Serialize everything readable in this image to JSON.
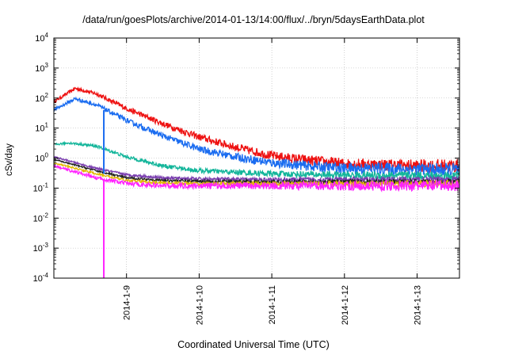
{
  "chart_data": {
    "type": "line",
    "title": "/data/run/goesPlots/archive/2014-01-13/14:00/flux/../bryn/5daysEarthData.plot",
    "xlabel": "Coordinated Universal Time (UTC)",
    "ylabel": "cSv/day",
    "y_scale": "log",
    "ylim": [
      0.0001,
      10000
    ],
    "xlim": [
      "2014-01-08T00:00",
      "2014-01-13T14:00"
    ],
    "x_ticks": [
      "2014-01-09",
      "2014-01-10",
      "2014-01-11",
      "2014-01-12",
      "2014-01-13"
    ],
    "x_tick_labels": [
      "2014-1-9",
      "2014-1-10",
      "2014-1-11",
      "2014-1-12",
      "2014-1-13"
    ],
    "y_ticks": [
      0.0001,
      0.001,
      0.01,
      0.1,
      1,
      10,
      100,
      1000,
      10000
    ],
    "y_tick_labels": [
      {
        "base": "10",
        "exp": "-4"
      },
      {
        "base": "10",
        "exp": "-3"
      },
      {
        "base": "10",
        "exp": "-2"
      },
      {
        "base": "10",
        "exp": "-1"
      },
      {
        "base": "10",
        "exp": "0"
      },
      {
        "base": "10",
        "exp": "1"
      },
      {
        "base": "10",
        "exp": "2"
      },
      {
        "base": "10",
        "exp": "3"
      },
      {
        "base": "10",
        "exp": "4"
      }
    ],
    "grid": true,
    "legend": "none",
    "series": [
      {
        "color": "#ee1111",
        "noise": 0.12,
        "points": [
          [
            "2014-01-08T00:00",
            75
          ],
          [
            "2014-01-08T07:00",
            210
          ],
          [
            "2014-01-08T14:00",
            140
          ],
          [
            "2014-01-09T00:00",
            45
          ],
          [
            "2014-01-09T12:00",
            14
          ],
          [
            "2014-01-10T00:00",
            5
          ],
          [
            "2014-01-10T12:00",
            2.3
          ],
          [
            "2014-01-11T00:00",
            1.2
          ],
          [
            "2014-01-11T12:00",
            0.85
          ],
          [
            "2014-01-12T00:00",
            0.65
          ],
          [
            "2014-01-12T12:00",
            0.6
          ],
          [
            "2014-01-13T00:00",
            0.55
          ],
          [
            "2014-01-13T14:00",
            0.55
          ]
        ]
      },
      {
        "color": "#1a6cf0",
        "noise": 0.12,
        "points": [
          [
            "2014-01-08T00:00",
            40
          ],
          [
            "2014-01-08T07:00",
            95
          ],
          [
            "2014-01-08T14:00",
            60
          ],
          [
            "2014-01-09T00:00",
            18
          ],
          [
            "2014-01-09T12:00",
            5.5
          ],
          [
            "2014-01-10T00:00",
            2
          ],
          [
            "2014-01-10T12:00",
            1.1
          ],
          [
            "2014-01-11T00:00",
            0.7
          ],
          [
            "2014-01-11T12:00",
            0.55
          ],
          [
            "2014-01-12T00:00",
            0.45
          ],
          [
            "2014-01-12T12:00",
            0.45
          ],
          [
            "2014-01-13T00:00",
            0.42
          ],
          [
            "2014-01-13T14:00",
            0.4
          ]
        ]
      },
      {
        "color": "#12b59a",
        "noise": 0.08,
        "points": [
          [
            "2014-01-08T00:00",
            2.8
          ],
          [
            "2014-01-08T05:00",
            3.2
          ],
          [
            "2014-01-08T14:00",
            2.5
          ],
          [
            "2014-01-09T00:00",
            1.1
          ],
          [
            "2014-01-09T12:00",
            0.55
          ],
          [
            "2014-01-10T00:00",
            0.38
          ],
          [
            "2014-01-11T00:00",
            0.3
          ],
          [
            "2014-01-12T00:00",
            0.27
          ],
          [
            "2014-01-13T00:00",
            0.26
          ],
          [
            "2014-01-13T14:00",
            0.25
          ]
        ]
      },
      {
        "color": "#7b3fb0",
        "noise": 0.06,
        "points": [
          [
            "2014-01-08T00:00",
            1.1
          ],
          [
            "2014-01-08T14:00",
            0.45
          ],
          [
            "2014-01-09T00:00",
            0.28
          ],
          [
            "2014-01-09T12:00",
            0.22
          ],
          [
            "2014-01-10T00:00",
            0.2
          ],
          [
            "2014-01-11T00:00",
            0.19
          ],
          [
            "2014-01-12T00:00",
            0.19
          ],
          [
            "2014-01-13T14:00",
            0.19
          ]
        ]
      },
      {
        "color": "#222222",
        "noise": 0.05,
        "points": [
          [
            "2014-01-08T00:00",
            0.9
          ],
          [
            "2014-01-08T14:00",
            0.38
          ],
          [
            "2014-01-09T00:00",
            0.22
          ],
          [
            "2014-01-09T12:00",
            0.18
          ],
          [
            "2014-01-10T00:00",
            0.17
          ],
          [
            "2014-01-11T00:00",
            0.16
          ],
          [
            "2014-01-12T00:00",
            0.16
          ],
          [
            "2014-01-13T14:00",
            0.16
          ]
        ]
      },
      {
        "color": "#e0b800",
        "noise": 0.06,
        "points": [
          [
            "2014-01-08T00:00",
            0.7
          ],
          [
            "2014-01-08T14:00",
            0.3
          ],
          [
            "2014-01-09T00:00",
            0.18
          ],
          [
            "2014-01-09T12:00",
            0.15
          ],
          [
            "2014-01-10T00:00",
            0.14
          ],
          [
            "2014-01-11T00:00",
            0.14
          ],
          [
            "2014-01-12T00:00",
            0.14
          ],
          [
            "2014-01-13T14:00",
            0.14
          ]
        ]
      },
      {
        "color": "#ff22ff",
        "noise": 0.1,
        "points": [
          [
            "2014-01-08T00:00",
            0.55
          ],
          [
            "2014-01-08T14:00",
            0.22
          ],
          [
            "2014-01-09T00:00",
            0.14
          ],
          [
            "2014-01-09T12:00",
            0.12
          ],
          [
            "2014-01-10T00:00",
            0.12
          ],
          [
            "2014-01-11T00:00",
            0.12
          ],
          [
            "2014-01-12T00:00",
            0.12
          ],
          [
            "2014-01-13T14:00",
            0.12
          ]
        ]
      }
    ],
    "drops": [
      {
        "color": "#1a6cf0",
        "x": "2014-01-08T16:30",
        "from": 40,
        "to": 0.3
      },
      {
        "color": "#ff22ff",
        "x": "2014-01-08T16:30",
        "from": 0.2,
        "to": 0.0001
      }
    ]
  }
}
